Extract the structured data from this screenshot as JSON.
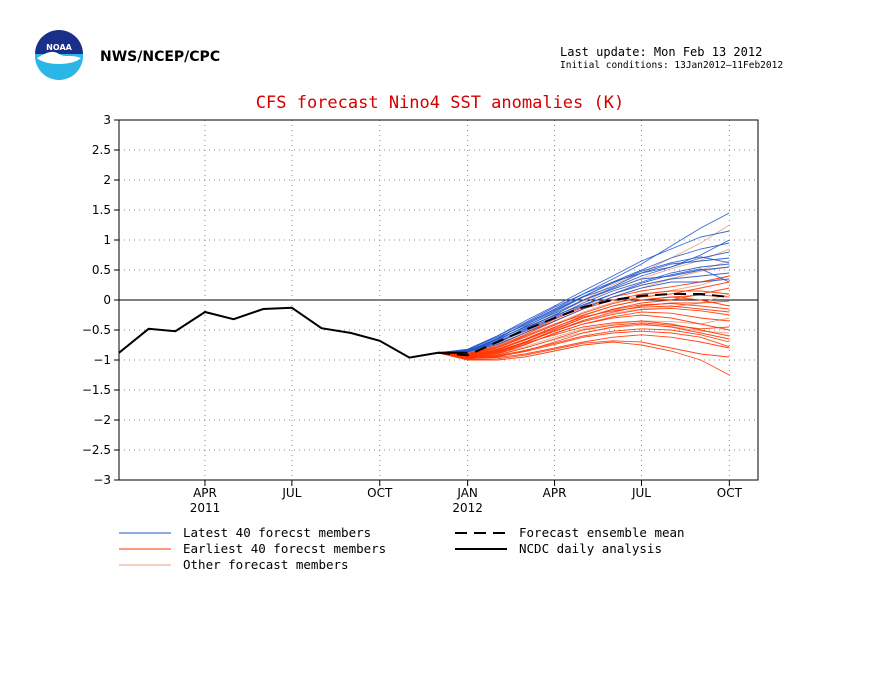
{
  "header": {
    "organization": "NWS/NCEP/CPC",
    "last_update": "Last update: Mon Feb 13 2012",
    "initial_conditions": "Initial conditions: 13Jan2012–11Feb2012",
    "logo_icon": "noaa-logo-icon"
  },
  "colors": {
    "title": "#d40000",
    "latest_members": "#2255cc",
    "earliest_members": "#ff3300",
    "other_members": "#e8a080",
    "mean": "#000000",
    "analysis": "#000000",
    "zero_line": "#000000"
  },
  "chart_data": {
    "type": "line",
    "title": "CFS forecast Nino4 SST anomalies (K)",
    "xlabel": "",
    "ylabel": "",
    "ylim": [
      -3,
      3
    ],
    "xlim": [
      "2011-01-01",
      "2012-10-31"
    ],
    "y_ticks": [
      "3",
      "2.5",
      "2",
      "1.5",
      "1",
      "0.5",
      "0",
      "−0.5",
      "−1",
      "−1.5",
      "−2",
      "−2.5",
      "−3"
    ],
    "y_tick_values": [
      3,
      2.5,
      2,
      1.5,
      1,
      0.5,
      0,
      -0.5,
      -1,
      -1.5,
      -2,
      -2.5,
      -3
    ],
    "x_ticks": [
      {
        "month": "APR",
        "year": "2011",
        "date": "2011-04-01"
      },
      {
        "month": "JUL",
        "year": "",
        "date": "2011-07-01"
      },
      {
        "month": "OCT",
        "year": "",
        "date": "2011-10-01"
      },
      {
        "month": "JAN",
        "year": "2012",
        "date": "2012-01-01"
      },
      {
        "month": "APR",
        "year": "",
        "date": "2012-04-01"
      },
      {
        "month": "JUL",
        "year": "",
        "date": "2012-07-01"
      },
      {
        "month": "OCT",
        "year": "",
        "date": "2012-10-01"
      }
    ],
    "grid": true,
    "legend_position": "bottom",
    "series": [
      {
        "name": "NCDC daily analysis",
        "style": "solid",
        "color": "#000000",
        "points": [
          {
            "date": "2011-01-01",
            "y": -0.88
          },
          {
            "date": "2011-02-01",
            "y": -0.48
          },
          {
            "date": "2011-03-01",
            "y": -0.52
          },
          {
            "date": "2011-04-01",
            "y": -0.2
          },
          {
            "date": "2011-05-01",
            "y": -0.32
          },
          {
            "date": "2011-06-01",
            "y": -0.15
          },
          {
            "date": "2011-07-01",
            "y": -0.13
          },
          {
            "date": "2011-08-01",
            "y": -0.47
          },
          {
            "date": "2011-09-01",
            "y": -0.55
          },
          {
            "date": "2011-10-01",
            "y": -0.68
          },
          {
            "date": "2011-11-01",
            "y": -0.96
          },
          {
            "date": "2011-12-01",
            "y": -0.88
          },
          {
            "date": "2012-01-01",
            "y": -0.88
          }
        ]
      },
      {
        "name": "Forecast ensemble mean",
        "style": "dashed",
        "color": "#000000",
        "points": [
          {
            "date": "2011-12-01",
            "y": -0.88
          },
          {
            "date": "2012-01-01",
            "y": -0.92
          },
          {
            "date": "2012-02-01",
            "y": -0.7
          },
          {
            "date": "2012-03-01",
            "y": -0.5
          },
          {
            "date": "2012-04-01",
            "y": -0.3
          },
          {
            "date": "2012-05-01",
            "y": -0.12
          },
          {
            "date": "2012-06-01",
            "y": 0.0
          },
          {
            "date": "2012-07-01",
            "y": 0.07
          },
          {
            "date": "2012-08-01",
            "y": 0.1
          },
          {
            "date": "2012-09-01",
            "y": 0.1
          },
          {
            "date": "2012-10-01",
            "y": 0.05
          }
        ]
      }
    ],
    "ensemble": {
      "forecast_months": [
        "2011-12-01",
        "2012-01-01",
        "2012-02-01",
        "2012-03-01",
        "2012-04-01",
        "2012-05-01",
        "2012-06-01",
        "2012-07-01",
        "2012-08-01",
        "2012-09-01",
        "2012-10-01"
      ],
      "groups": [
        {
          "name": "Latest 40 forecast members",
          "color": "#2255cc",
          "members": [
            [
              -0.88,
              -0.85,
              -0.65,
              -0.4,
              -0.15,
              0.1,
              0.35,
              0.6,
              0.9,
              1.2,
              1.45
            ],
            [
              -0.88,
              -0.82,
              -0.6,
              -0.35,
              -0.1,
              0.15,
              0.4,
              0.65,
              0.85,
              1.05,
              1.15
            ],
            [
              -0.88,
              -0.86,
              -0.66,
              -0.45,
              -0.2,
              0.05,
              0.3,
              0.5,
              0.7,
              0.85,
              0.95
            ],
            [
              -0.88,
              -0.84,
              -0.7,
              -0.48,
              -0.25,
              0.0,
              0.2,
              0.4,
              0.55,
              0.7,
              0.8
            ],
            [
              -0.88,
              -0.83,
              -0.62,
              -0.42,
              -0.18,
              0.05,
              0.22,
              0.45,
              0.6,
              0.65,
              0.7
            ],
            [
              -0.88,
              -0.86,
              -0.72,
              -0.5,
              -0.28,
              -0.05,
              0.15,
              0.3,
              0.45,
              0.55,
              0.6
            ],
            [
              -0.88,
              -0.85,
              -0.68,
              -0.44,
              -0.22,
              0.0,
              0.18,
              0.35,
              0.4,
              0.5,
              0.55
            ],
            [
              -0.88,
              -0.84,
              -0.66,
              -0.46,
              -0.26,
              -0.08,
              0.1,
              0.25,
              0.35,
              0.4,
              0.45
            ],
            [
              -0.88,
              -0.87,
              -0.74,
              -0.55,
              -0.35,
              -0.15,
              0.05,
              0.2,
              0.3,
              0.3,
              0.35
            ],
            [
              -0.88,
              -0.83,
              -0.6,
              -0.38,
              -0.12,
              0.1,
              0.3,
              0.45,
              0.55,
              0.75,
              1.0
            ],
            [
              -0.88,
              -0.86,
              -0.7,
              -0.52,
              -0.3,
              -0.1,
              0.1,
              0.28,
              0.42,
              0.52,
              0.3
            ],
            [
              -0.88,
              -0.85,
              -0.64,
              -0.4,
              -0.16,
              0.06,
              0.28,
              0.48,
              0.62,
              0.72,
              0.62
            ]
          ]
        },
        {
          "name": "Earliest 40 forecest members",
          "color": "#ff3300",
          "members": [
            [
              -0.88,
              -0.95,
              -0.9,
              -0.75,
              -0.55,
              -0.4,
              -0.3,
              -0.25,
              -0.3,
              -0.4,
              -0.5
            ],
            [
              -0.88,
              -0.9,
              -0.8,
              -0.6,
              -0.4,
              -0.25,
              -0.1,
              0.0,
              0.05,
              0.0,
              -0.1
            ],
            [
              -0.88,
              -0.98,
              -0.95,
              -0.85,
              -0.7,
              -0.55,
              -0.45,
              -0.4,
              -0.45,
              -0.55,
              -0.65
            ],
            [
              -0.88,
              -0.92,
              -0.85,
              -0.7,
              -0.5,
              -0.3,
              -0.15,
              -0.05,
              0.0,
              0.1,
              0.2
            ],
            [
              -0.88,
              -1.0,
              -1.0,
              -0.95,
              -0.85,
              -0.75,
              -0.7,
              -0.75,
              -0.85,
              -1.0,
              -1.25
            ],
            [
              -0.88,
              -0.94,
              -0.88,
              -0.72,
              -0.58,
              -0.45,
              -0.38,
              -0.35,
              -0.4,
              -0.5,
              -0.6
            ],
            [
              -0.88,
              -0.9,
              -0.78,
              -0.58,
              -0.35,
              -0.15,
              0.0,
              0.1,
              0.15,
              0.15,
              0.1
            ],
            [
              -0.88,
              -0.96,
              -0.92,
              -0.8,
              -0.65,
              -0.5,
              -0.42,
              -0.38,
              -0.42,
              -0.48,
              -0.45
            ],
            [
              -0.88,
              -0.91,
              -0.82,
              -0.65,
              -0.45,
              -0.28,
              -0.18,
              -0.12,
              -0.1,
              -0.15,
              -0.2
            ],
            [
              -0.88,
              -0.97,
              -0.96,
              -0.9,
              -0.8,
              -0.7,
              -0.62,
              -0.58,
              -0.62,
              -0.7,
              -0.8
            ],
            [
              -0.88,
              -0.89,
              -0.76,
              -0.55,
              -0.32,
              -0.12,
              0.05,
              0.15,
              0.22,
              0.3,
              0.4
            ],
            [
              -0.88,
              -0.93,
              -0.86,
              -0.7,
              -0.52,
              -0.36,
              -0.24,
              -0.16,
              -0.14,
              -0.18,
              -0.25
            ],
            [
              -0.88,
              -0.99,
              -0.98,
              -0.92,
              -0.82,
              -0.72,
              -0.68,
              -0.7,
              -0.8,
              -0.9,
              -0.95
            ],
            [
              -0.88,
              -0.92,
              -0.84,
              -0.66,
              -0.46,
              -0.26,
              -0.1,
              0.0,
              0.05,
              0.08,
              0.05
            ],
            [
              -0.88,
              -0.95,
              -0.89,
              -0.74,
              -0.56,
              -0.4,
              -0.28,
              -0.2,
              -0.22,
              -0.3,
              -0.35
            ],
            [
              -0.88,
              -0.9,
              -0.8,
              -0.62,
              -0.42,
              -0.22,
              -0.06,
              0.05,
              0.1,
              0.2,
              0.3
            ],
            [
              -0.88,
              -0.97,
              -0.93,
              -0.84,
              -0.72,
              -0.6,
              -0.52,
              -0.48,
              -0.5,
              -0.58,
              -0.7
            ],
            [
              -0.88,
              -0.93,
              -0.87,
              -0.71,
              -0.52,
              -0.34,
              -0.2,
              -0.1,
              -0.05,
              -0.05,
              -0.02
            ],
            [
              -0.88,
              -0.91,
              -0.83,
              -0.67,
              -0.48,
              -0.3,
              -0.16,
              -0.08,
              -0.06,
              -0.1,
              -0.15
            ],
            [
              -0.88,
              -0.96,
              -0.94,
              -0.86,
              -0.74,
              -0.62,
              -0.55,
              -0.52,
              -0.55,
              -0.62,
              -0.78
            ]
          ]
        },
        {
          "name": "Other forecast members",
          "color": "#e8a080",
          "members": [
            [
              -0.88,
              -0.87,
              -0.72,
              -0.5,
              -0.25,
              0.0,
              0.25,
              0.45,
              0.7,
              0.95,
              1.25
            ],
            [
              -0.88,
              -0.89,
              -0.78,
              -0.58,
              -0.36,
              -0.14,
              0.05,
              0.2,
              0.35,
              0.5,
              0.65
            ],
            [
              -0.88,
              -0.92,
              -0.86,
              -0.7,
              -0.52,
              -0.34,
              -0.22,
              -0.15,
              -0.12,
              -0.05,
              0.1
            ],
            [
              -0.88,
              -0.86,
              -0.7,
              -0.48,
              -0.24,
              -0.02,
              0.18,
              0.36,
              0.52,
              0.66,
              0.85
            ],
            [
              -0.88,
              -0.94,
              -0.9,
              -0.78,
              -0.62,
              -0.48,
              -0.4,
              -0.35,
              -0.36,
              -0.4,
              -0.3
            ],
            [
              -0.88,
              -0.88,
              -0.74,
              -0.54,
              -0.3,
              -0.08,
              0.1,
              0.24,
              0.36,
              0.48,
              0.55
            ],
            [
              -0.88,
              -0.9,
              -0.79,
              -0.6,
              -0.4,
              -0.2,
              -0.04,
              0.08,
              0.16,
              0.25,
              0.4
            ],
            [
              -0.88,
              -0.95,
              -0.91,
              -0.8,
              -0.66,
              -0.54,
              -0.46,
              -0.42,
              -0.44,
              -0.52,
              -0.55
            ]
          ]
        }
      ]
    },
    "legend": [
      {
        "label": "Latest 40 forecst members",
        "style": "solid",
        "color": "#2255cc"
      },
      {
        "label": "Earliest 40 forecst members",
        "style": "solid",
        "color": "#ff3300"
      },
      {
        "label": "Other forecast members",
        "style": "solid",
        "color": "#e8a080"
      },
      {
        "label": "Forecast ensemble mean",
        "style": "dashed",
        "color": "#000000"
      },
      {
        "label": "NCDC daily analysis",
        "style": "solid",
        "color": "#000000"
      }
    ]
  }
}
